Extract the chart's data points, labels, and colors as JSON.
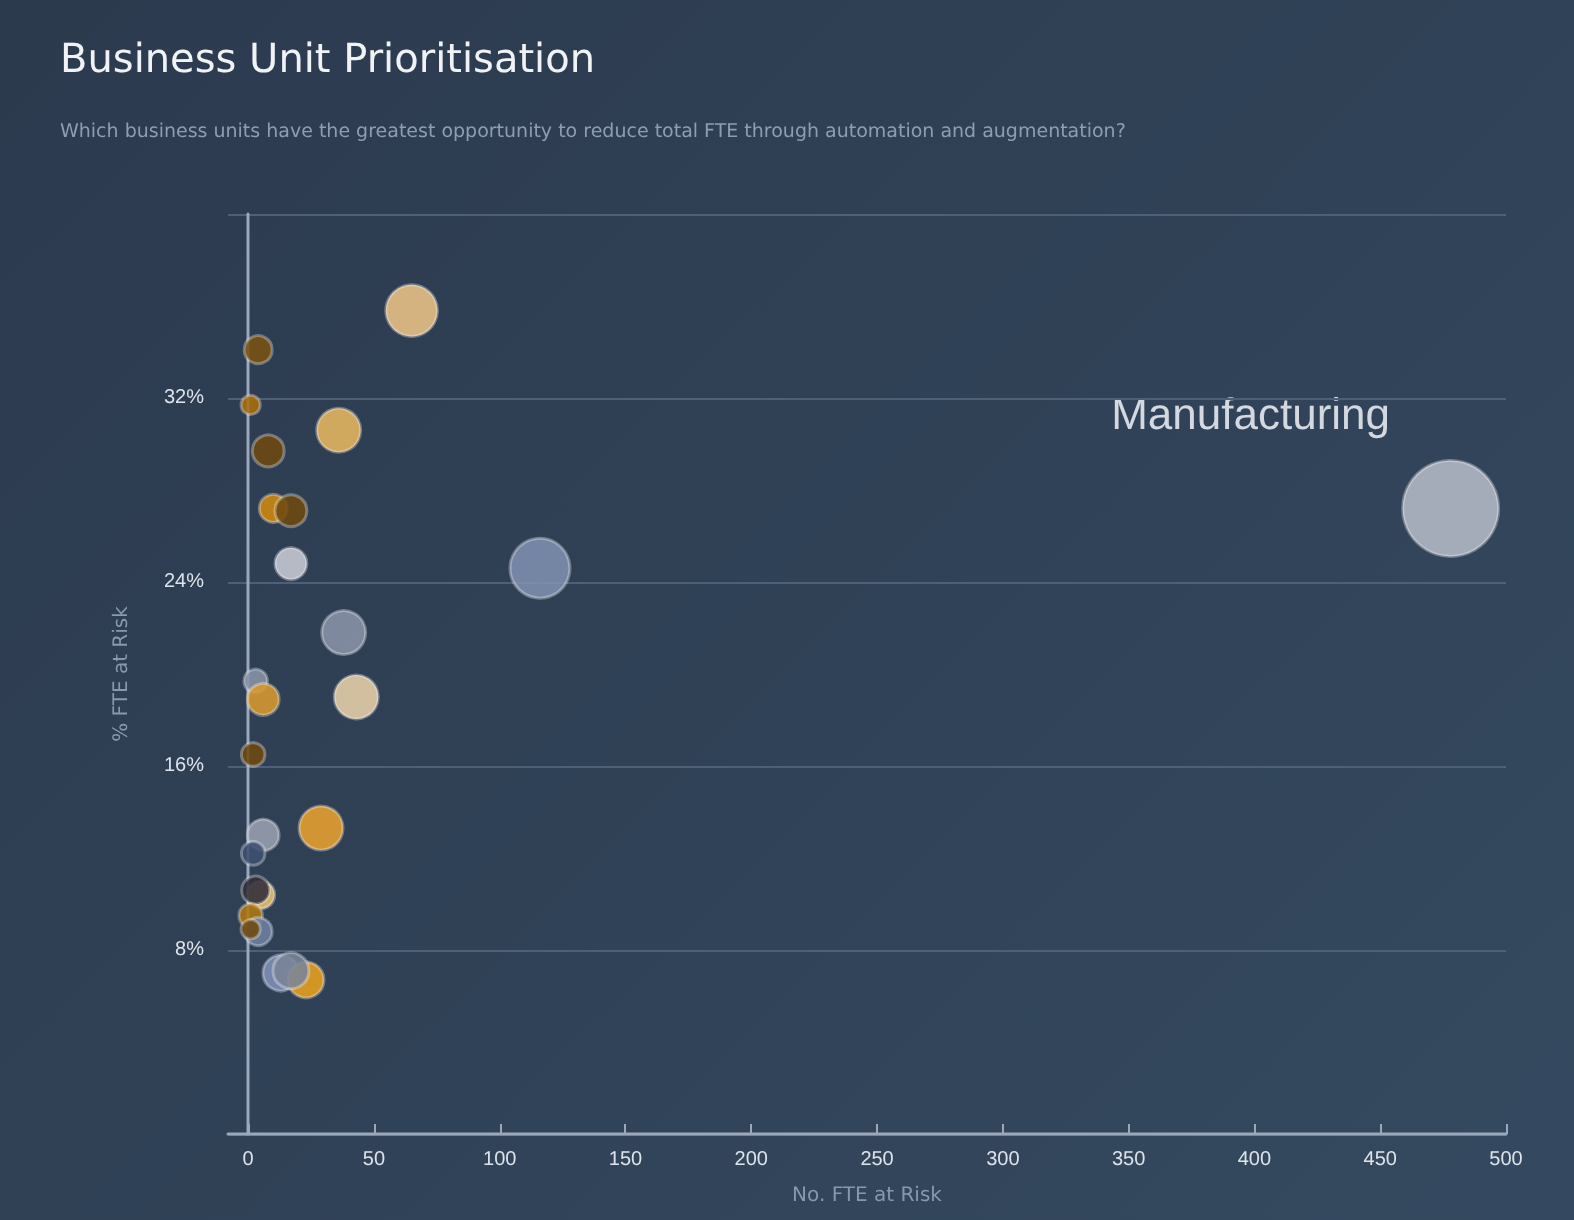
{
  "chart_data": {
    "type": "bubble",
    "title": "Business Unit Prioritisation",
    "subtitle": "Which business units have the greatest opportunity to reduce total FTE through automation and augmentation?",
    "xlabel": "No. FTE at Risk",
    "ylabel": "% FTE at Risk",
    "annotations": [
      "Manufacturing"
    ],
    "x": [
      478,
      65,
      4,
      1,
      36,
      8,
      10,
      17,
      17,
      116,
      38,
      3,
      6,
      43,
      2,
      6,
      29,
      2,
      5,
      3,
      1,
      4,
      1,
      13,
      23,
      17
    ],
    "values": [
      27.2,
      35.8,
      34.1,
      31.7,
      30.6,
      29.7,
      27.2,
      27.1,
      24.8,
      24.6,
      21.8,
      19.7,
      18.9,
      19.0,
      16.5,
      13.0,
      13.3,
      12.2,
      10.4,
      10.6,
      9.5,
      8.8,
      8.9,
      7.0,
      6.7,
      7.1
    ],
    "sizes": [
      1,
      0.29,
      0.085,
      0.04,
      0.21,
      0.11,
      0.085,
      0.11,
      0.11,
      0.39,
      0.21,
      0.06,
      0.11,
      0.21,
      0.06,
      0.11,
      0.21,
      0.06,
      0.085,
      0.085,
      0.06,
      0.085,
      0.04,
      0.14,
      0.14,
      0.14
    ],
    "colors": [
      "#b4b9c6",
      "#ecc488",
      "#7a5210",
      "#a8700f",
      "#e8b860",
      "#6e4a10",
      "#d08a10",
      "#6e4a10",
      "#c8ccd4",
      "#8090b0",
      "#8a94a8",
      "#8a94a8",
      "#d89a30",
      "#e8d0a8",
      "#6e4a10",
      "#9aa0b0",
      "#e8a030",
      "#3e5070",
      "#e8c070",
      "#302e3a",
      "#b07810",
      "#7080a0",
      "#6e4a10",
      "#8090b8",
      "#e8a020",
      "#7a8498"
    ],
    "xlim": [
      -8,
      500
    ],
    "xticks": [
      0,
      50,
      100,
      150,
      200,
      250,
      300,
      350,
      400,
      450,
      500
    ],
    "ylim": [
      0,
      40
    ],
    "yticks": [
      {
        "value": 0,
        "label": null
      },
      {
        "value": 8,
        "label": "8%"
      },
      {
        "value": 16,
        "label": "16%"
      },
      {
        "value": 24,
        "label": "24%"
      },
      {
        "value": 32,
        "label": "32%"
      },
      {
        "value": 40,
        "label": null
      }
    ],
    "grid": "y"
  }
}
